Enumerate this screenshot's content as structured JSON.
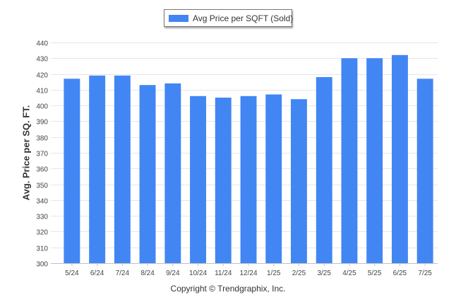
{
  "chart_data": {
    "type": "bar",
    "title": "",
    "xlabel": "",
    "ylabel": "Avg. Price per SQ. FT.",
    "categories": [
      "5/24",
      "6/24",
      "7/24",
      "8/24",
      "9/24",
      "10/24",
      "11/24",
      "12/24",
      "1/25",
      "2/25",
      "3/25",
      "4/25",
      "5/25",
      "6/25",
      "7/25"
    ],
    "series": [
      {
        "name": "Avg Price per SQFT (Sold)",
        "values": [
          417,
          419,
          419,
          413,
          414,
          406,
          405,
          406,
          407,
          404,
          418,
          430,
          430,
          432,
          417
        ],
        "color": "#4286f4"
      }
    ],
    "ylim": [
      300,
      440
    ],
    "yticks": [
      300,
      310,
      320,
      330,
      340,
      350,
      360,
      370,
      380,
      390,
      400,
      410,
      420,
      430,
      440
    ],
    "grid": true,
    "legend_position": "top-center"
  },
  "footer": {
    "copyright": "Copyright © Trendgraphix, Inc."
  }
}
